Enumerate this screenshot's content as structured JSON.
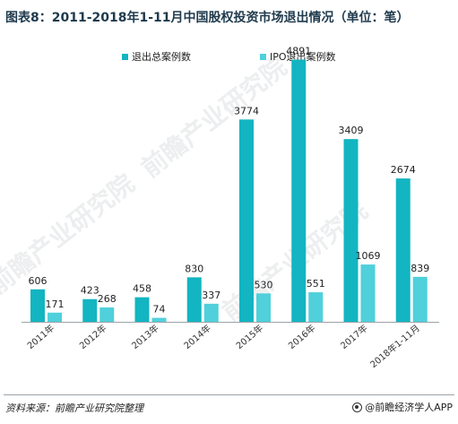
{
  "title": "图表8：2011-2018年1-11月中国股权投资市场退出情况（单位：笔）",
  "source": "资料来源：前瞻产业研究院整理",
  "brand": "@前瞻经济学人APP",
  "watermark": "前瞻产业研究院",
  "colors": {
    "series1": "#12b5c1",
    "series2": "#4fd0db"
  },
  "chart_data": {
    "type": "bar",
    "categories": [
      "2011年",
      "2012年",
      "2013年",
      "2014年",
      "2015年",
      "2016年",
      "2017年",
      "2018年1-11月"
    ],
    "series": [
      {
        "name": "退出总案例数",
        "values": [
          606,
          423,
          458,
          830,
          3774,
          4891,
          3409,
          2674
        ]
      },
      {
        "name": "IPO退出案例数",
        "values": [
          171,
          268,
          74,
          337,
          530,
          551,
          1069,
          839
        ]
      }
    ],
    "ylim": [
      0,
      5000
    ],
    "legend": "top-center",
    "grid": false
  }
}
